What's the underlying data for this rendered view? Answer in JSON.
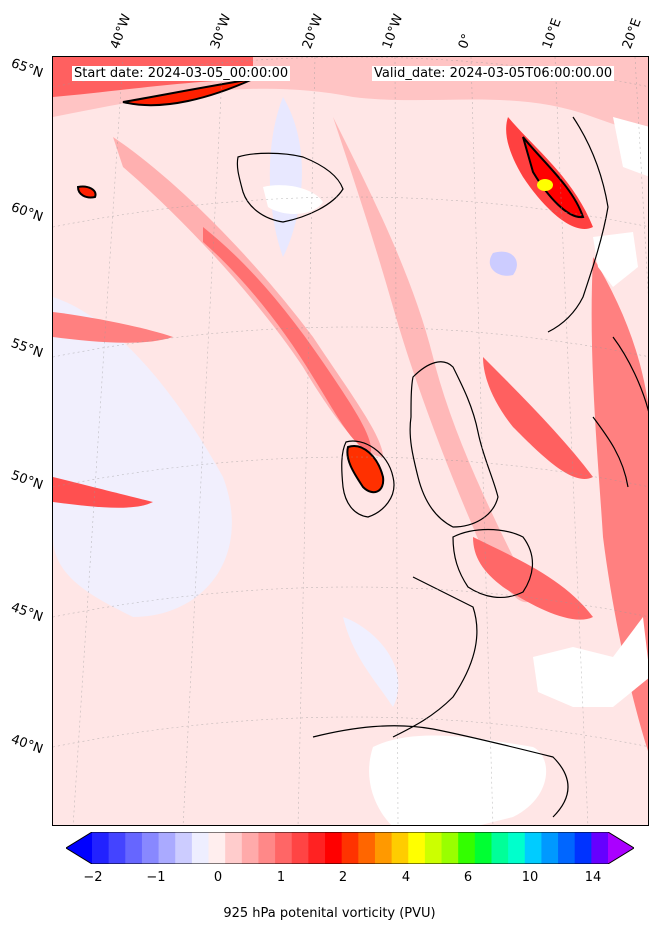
{
  "header": {
    "start_date": "Start date: 2024-03-05_00:00:00",
    "valid_date": "Valid_date: 2024-03-05T06:00:00.00"
  },
  "longitude_labels": [
    "40°W",
    "30°W",
    "20°W",
    "10°W",
    "0°",
    "10°E",
    "20°E"
  ],
  "latitude_labels": [
    "65°N",
    "60°N",
    "55°N",
    "50°N",
    "45°N",
    "40°N"
  ],
  "colorbar": {
    "ticks": [
      "−2",
      "−1",
      "0",
      "1",
      "2",
      "4",
      "6",
      "10",
      "14"
    ],
    "label": "925 hPa potenital vorticity (PVU)",
    "colors": [
      "#0000ff",
      "#2222ff",
      "#4444ff",
      "#6666ff",
      "#8888ff",
      "#aaaaff",
      "#ccccff",
      "#eeeeff",
      "#ffeeee",
      "#ffcccc",
      "#ffaaaa",
      "#ff8888",
      "#ff6666",
      "#ff4444",
      "#ff2222",
      "#ff0000",
      "#ff3300",
      "#ff6600",
      "#ff9900",
      "#ffcc00",
      "#ffff00",
      "#ccff00",
      "#99ff00",
      "#33ff00",
      "#00ff33",
      "#00ff99",
      "#00ffcc",
      "#00ccff",
      "#0099ff",
      "#0066ff",
      "#0033ff",
      "#6600ff",
      "#aa00ff"
    ]
  }
}
